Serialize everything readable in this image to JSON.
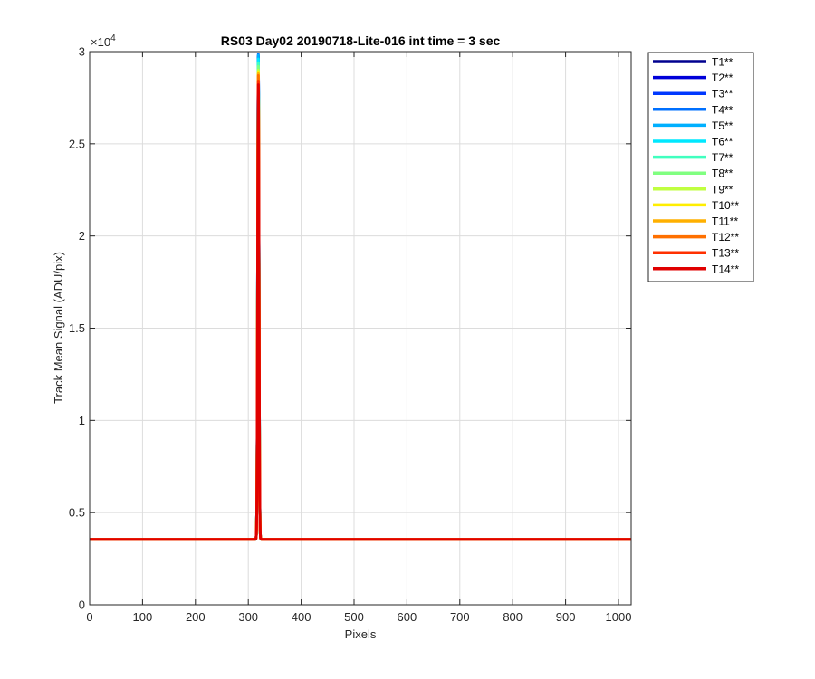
{
  "chart_data": {
    "type": "line",
    "title": "RS03 Day02 20190718-Lite-016 int time = 3 sec",
    "xlabel": "Pixels",
    "ylabel": "Track Mean Signal (ADU/pix)",
    "xlim": [
      0,
      1024
    ],
    "ylim": [
      0,
      30000
    ],
    "x_ticks": [
      0,
      100,
      200,
      300,
      400,
      500,
      600,
      700,
      800,
      900,
      1000
    ],
    "x_tick_labels": [
      "0",
      "100",
      "200",
      "300",
      "400",
      "500",
      "600",
      "700",
      "800",
      "900",
      "1000"
    ],
    "y_ticks": [
      0,
      5000,
      10000,
      15000,
      20000,
      25000,
      30000
    ],
    "y_tick_labels": [
      "0",
      "0.5",
      "1",
      "1.5",
      "2",
      "2.5",
      "3"
    ],
    "y_exponent_label": "×10",
    "y_exponent_power": "4",
    "grid": true,
    "legend_position": "outside-right",
    "baseline_value": 3550,
    "peak_center_x": 319,
    "series": [
      {
        "name": "T1**",
        "color": "#00008f",
        "peak": 29700
      },
      {
        "name": "T2**",
        "color": "#0000d9",
        "peak": 29750
      },
      {
        "name": "T3**",
        "color": "#0038ff",
        "peak": 29800
      },
      {
        "name": "T4**",
        "color": "#0070ff",
        "peak": 29850
      },
      {
        "name": "T5**",
        "color": "#00b0ff",
        "peak": 29800
      },
      {
        "name": "T6**",
        "color": "#00e8ff",
        "peak": 29600
      },
      {
        "name": "T7**",
        "color": "#40ffbf",
        "peak": 29400
      },
      {
        "name": "T8**",
        "color": "#80ff80",
        "peak": 29200
      },
      {
        "name": "T9**",
        "color": "#c0ff40",
        "peak": 29000
      },
      {
        "name": "T10**",
        "color": "#ffee00",
        "peak": 28900
      },
      {
        "name": "T11**",
        "color": "#ffb000",
        "peak": 28800
      },
      {
        "name": "T12**",
        "color": "#ff7000",
        "peak": 28700
      },
      {
        "name": "T13**",
        "color": "#ff3000",
        "peak": 28400
      },
      {
        "name": "T14**",
        "color": "#e00000",
        "peak": 28200
      }
    ]
  }
}
